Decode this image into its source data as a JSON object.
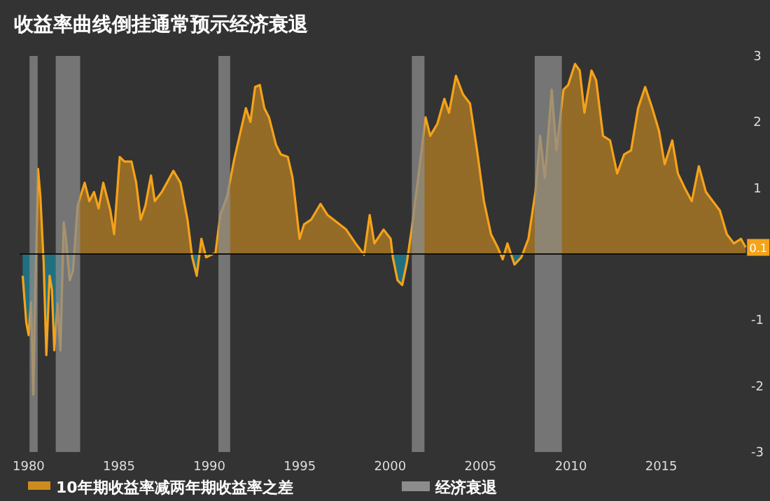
{
  "chart_data": {
    "type": "area",
    "title": "收益率曲线倒挂通常预示经济衰退",
    "x": [
      1979.67,
      1979.87,
      1980.0,
      1980.13,
      1980.26,
      1980.39,
      1980.52,
      1980.65,
      1980.83,
      1980.98,
      1981.16,
      1981.29,
      1981.42,
      1981.6,
      1981.76,
      1981.94,
      1982.07,
      1982.27,
      1982.45,
      1982.71,
      1983.1,
      1983.36,
      1983.62,
      1983.87,
      1984.13,
      1984.52,
      1984.73,
      1985.04,
      1985.3,
      1985.69,
      1985.95,
      1986.2,
      1986.46,
      1986.77,
      1986.98,
      1987.37,
      1988.01,
      1988.4,
      1988.79,
      1989.05,
      1989.3,
      1989.56,
      1989.82,
      1990.34,
      1990.6,
      1990.98,
      1991.37,
      1992.02,
      1992.27,
      1992.53,
      1992.79,
      1993.04,
      1993.3,
      1993.69,
      1993.95,
      1994.34,
      1994.6,
      1994.99,
      1995.24,
      1995.63,
      1996.15,
      1996.54,
      1997.57,
      1998.09,
      1998.56,
      1998.87,
      1999.13,
      1999.64,
      2000.03,
      2000.15,
      2000.41,
      2000.67,
      2000.93,
      2001.19,
      2001.58,
      2001.96,
      2002.22,
      2002.61,
      2003.0,
      2003.26,
      2003.64,
      2004.03,
      2004.42,
      2004.81,
      2005.19,
      2005.58,
      2005.97,
      2006.23,
      2006.49,
      2006.88,
      2007.26,
      2007.65,
      2008.04,
      2008.3,
      2008.56,
      2008.94,
      2009.2,
      2009.59,
      2009.85,
      2010.23,
      2010.49,
      2010.75,
      2011.14,
      2011.4,
      2011.78,
      2012.17,
      2012.56,
      2012.95,
      2013.33,
      2013.72,
      2014.11,
      2014.5,
      2014.88,
      2015.19,
      2015.61,
      2015.92,
      2016.3,
      2016.69,
      2017.08,
      2017.47,
      2017.85,
      2018.24,
      2018.63,
      2019.02,
      2019.41,
      2019.67
    ],
    "series": [
      {
        "name": "10年期收益率减两年期收益率之差",
        "color": "#f5a31a",
        "values": [
          -0.33,
          -1.04,
          -1.23,
          -0.73,
          -2.13,
          -0.33,
          1.29,
          0.87,
          -0.12,
          -1.53,
          -0.33,
          -0.54,
          -1.46,
          -0.75,
          -1.46,
          0.48,
          0.23,
          -0.4,
          -0.26,
          0.73,
          1.08,
          0.8,
          0.94,
          0.69,
          1.08,
          0.66,
          0.3,
          1.47,
          1.4,
          1.4,
          1.08,
          0.52,
          0.73,
          1.19,
          0.8,
          0.94,
          1.26,
          1.08,
          0.52,
          -0.05,
          -0.33,
          0.23,
          -0.05,
          0.02,
          0.59,
          0.87,
          1.43,
          2.21,
          2.0,
          2.53,
          2.56,
          2.21,
          2.07,
          1.65,
          1.51,
          1.47,
          1.16,
          0.23,
          0.45,
          0.52,
          0.76,
          0.59,
          0.37,
          0.16,
          -0.01,
          0.59,
          0.16,
          0.37,
          0.23,
          -0.05,
          -0.4,
          -0.47,
          -0.12,
          0.37,
          1.22,
          2.07,
          1.79,
          1.97,
          2.35,
          2.14,
          2.7,
          2.42,
          2.28,
          1.57,
          0.8,
          0.3,
          0.09,
          -0.08,
          0.16,
          -0.16,
          -0.05,
          0.23,
          0.94,
          1.79,
          1.15,
          2.49,
          1.57,
          2.49,
          2.56,
          2.88,
          2.78,
          2.14,
          2.78,
          2.63,
          1.79,
          1.72,
          1.22,
          1.51,
          1.57,
          2.21,
          2.53,
          2.21,
          1.86,
          1.36,
          1.72,
          1.22,
          1.0,
          0.8,
          1.33,
          0.94,
          0.8,
          0.66,
          0.3,
          0.16,
          0.23,
          0.1
        ]
      }
    ],
    "xlim": [
      1979.5,
      2019.7
    ],
    "xticks": [
      1980,
      1985,
      1990,
      1995,
      2000,
      2005,
      2010,
      2015
    ],
    "ylim": [
      -3,
      3
    ],
    "yticks": [
      -3,
      -2,
      -1,
      1,
      2,
      3
    ],
    "ref_lines": [
      {
        "axis": "y",
        "value": 0,
        "color": "#111111"
      }
    ],
    "bands": [
      {
        "axis": "x",
        "from": 1980.05,
        "to": 1980.5,
        "label": "经济衰退",
        "color": "#8c8c8c"
      },
      {
        "axis": "x",
        "from": 1981.5,
        "to": 1982.85,
        "color": "#8c8c8c"
      },
      {
        "axis": "x",
        "from": 1990.5,
        "to": 1991.15,
        "color": "#8c8c8c"
      },
      {
        "axis": "x",
        "from": 2001.2,
        "to": 2001.9,
        "color": "#8c8c8c"
      },
      {
        "axis": "x",
        "from": 2008.0,
        "to": 2009.5,
        "color": "#8c8c8c"
      }
    ],
    "annotations": [
      {
        "text": "0.1",
        "x": 2019.67,
        "y": 0.1
      }
    ],
    "legend": "bottom",
    "grid": false
  }
}
